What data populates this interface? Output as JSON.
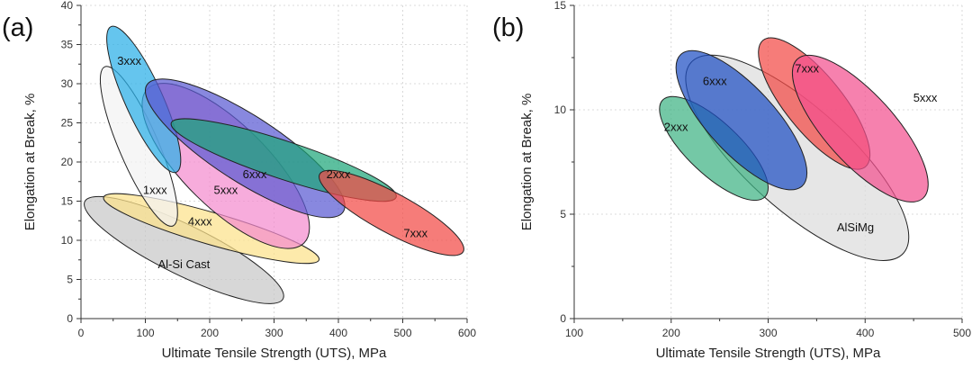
{
  "chart_data": [
    {
      "type": "bubble-region",
      "panel_label": "(a)",
      "xlabel": "Ultimate Tensile Strength (UTS), MPa",
      "ylabel": "Elongation at Break, %",
      "xlim": [
        0,
        600
      ],
      "ylim": [
        0,
        40
      ],
      "xticks": [
        0,
        100,
        200,
        300,
        400,
        500,
        600
      ],
      "yticks": [
        0,
        5,
        10,
        15,
        20,
        25,
        30,
        35,
        40
      ],
      "grid": true,
      "regions": [
        {
          "name": "Al-Si Cast",
          "x_range": [
            5,
            315
          ],
          "y_range": [
            2.5,
            15
          ],
          "orientation": "descending",
          "color": "#c8c8c8",
          "label_at": [
            160,
            7
          ]
        },
        {
          "name": "4xxx",
          "x_range": [
            35,
            370
          ],
          "y_range": [
            7.5,
            15.5
          ],
          "orientation": "descending",
          "color": "#fce28a",
          "label_at": [
            185,
            12.5
          ]
        },
        {
          "name": "1xxx",
          "x_range": [
            30,
            150
          ],
          "y_range": [
            10.5,
            33.5
          ],
          "orientation": "descending",
          "color": "#f2f2f2",
          "label_at": [
            115,
            16.5
          ]
        },
        {
          "name": "5xxx",
          "x_range": [
            95,
            355
          ],
          "y_range": [
            9,
            30
          ],
          "orientation": "descending",
          "color": "#f48ccf",
          "label_at": [
            225,
            16.5
          ]
        },
        {
          "name": "3xxx",
          "x_range": [
            40,
            155
          ],
          "y_range": [
            17.5,
            38.5
          ],
          "orientation": "descending",
          "color": "#29aee8",
          "label_at": [
            75,
            33
          ]
        },
        {
          "name": "6xxx",
          "x_range": [
            100,
            410
          ],
          "y_range": [
            13.5,
            30
          ],
          "orientation": "descending",
          "color": "#5a5ad2",
          "label_at": [
            270,
            18.5
          ]
        },
        {
          "name": "2xxx",
          "x_range": [
            140,
            490
          ],
          "y_range": [
            15.5,
            25
          ],
          "orientation": "descending",
          "color": "#1fa67a",
          "label_at": [
            400,
            18.5
          ]
        },
        {
          "name": "7xxx",
          "x_range": [
            370,
            595
          ],
          "y_range": [
            8.5,
            18.5
          ],
          "orientation": "descending",
          "color": "#f24a45",
          "label_at": [
            520,
            11
          ]
        }
      ]
    },
    {
      "type": "bubble-region",
      "panel_label": "(b)",
      "xlabel": "Ultimate Tensile Strength (UTS), MPa",
      "ylabel": "Elongation at Break, %",
      "xlim": [
        100,
        500
      ],
      "ylim": [
        0,
        15
      ],
      "xticks": [
        100,
        200,
        300,
        400,
        500
      ],
      "yticks": [
        0,
        5,
        10,
        15
      ],
      "grid": true,
      "regions": [
        {
          "name": "AlSiMg",
          "x_range": [
            215,
            445
          ],
          "y_range": [
            2.9,
            12.5
          ],
          "orientation": "descending",
          "color": "#dcdcdc",
          "label_at": [
            390,
            4.4
          ]
        },
        {
          "name": "2xxx",
          "x_range": [
            188,
            300
          ],
          "y_range": [
            5.7,
            10.6
          ],
          "orientation": "descending",
          "color": "#3fb383",
          "label_at": [
            205,
            9.2
          ]
        },
        {
          "name": "6xxx",
          "x_range": [
            205,
            340
          ],
          "y_range": [
            6.1,
            12.9
          ],
          "orientation": "descending",
          "color": "#1f4fc4",
          "label_at": [
            245,
            11.4
          ]
        },
        {
          "name": "7xxx",
          "x_range": [
            290,
            405
          ],
          "y_range": [
            7.0,
            13.6
          ],
          "orientation": "descending",
          "color": "#f24a45",
          "label_at": [
            340,
            12.0
          ]
        },
        {
          "name": "5xxx",
          "x_range": [
            325,
            465
          ],
          "y_range": [
            5.5,
            12.7
          ],
          "orientation": "descending",
          "color": "#f2508f",
          "label_at": [
            462,
            10.6
          ]
        }
      ]
    }
  ]
}
